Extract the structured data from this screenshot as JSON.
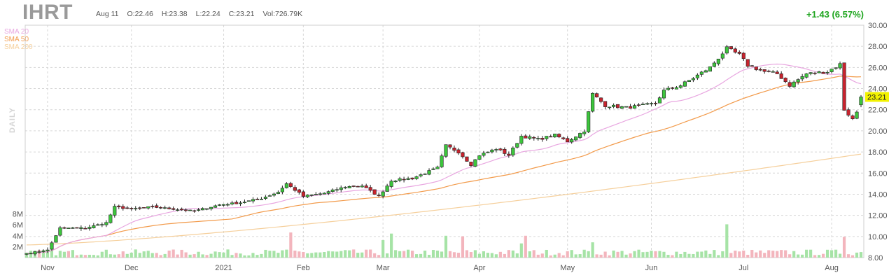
{
  "header": {
    "ticker": "IHRT",
    "date": "Aug 11",
    "open": "O:22.46",
    "high": "H:23.38",
    "low": "L:22.24",
    "close": "C:23.21",
    "volume": "Vol:726.79K",
    "change": "+1.43 (6.57%)",
    "timeframe": "DAILY"
  },
  "legend": [
    {
      "label": "SMA 20",
      "color": "#e8a6e0"
    },
    {
      "label": "SMA 50",
      "color": "#f29a4a"
    },
    {
      "label": "SMA 200",
      "color": "#f5cf9b"
    }
  ],
  "colors": {
    "up": "#3cc63c",
    "down": "#c8232e",
    "vol_up": "#a6e3a6",
    "vol_down": "#f3b5bd",
    "price_label_bg": "#f2f200"
  },
  "chart_data": {
    "type": "candlestick",
    "ylim": [
      8,
      30
    ],
    "y_ticks": [
      "8.00",
      "10.00",
      "12.00",
      "14.00",
      "16.00",
      "18.00",
      "20.00",
      "22.00",
      "24.00",
      "26.00",
      "28.00",
      "30.00"
    ],
    "volume_ticks": [
      "2M",
      "4M",
      "6M",
      "8M"
    ],
    "x_labels": [
      {
        "label": "Nov",
        "date": "2020-11-02"
      },
      {
        "label": "Dec",
        "date": "2020-12-01"
      },
      {
        "label": "2021",
        "date": "2021-01-04"
      },
      {
        "label": "Feb",
        "date": "2021-02-01"
      },
      {
        "label": "Mar",
        "date": "2021-03-01"
      },
      {
        "label": "Apr",
        "date": "2021-04-01"
      },
      {
        "label": "May",
        "date": "2021-05-03"
      },
      {
        "label": "Jun",
        "date": "2021-06-01"
      },
      {
        "label": "Jul",
        "date": "2021-07-01"
      },
      {
        "label": "Aug",
        "date": "2021-08-02"
      }
    ],
    "last_price": "23.21",
    "close_anchors": [
      [
        "2020-10-26",
        8.4
      ],
      [
        "2020-11-02",
        8.7
      ],
      [
        "2020-11-05",
        10.8
      ],
      [
        "2020-11-13",
        10.8
      ],
      [
        "2020-11-20",
        11.3
      ],
      [
        "2020-11-24",
        12.8
      ],
      [
        "2020-12-01",
        12.6
      ],
      [
        "2020-12-08",
        12.8
      ],
      [
        "2020-12-15",
        12.6
      ],
      [
        "2020-12-22",
        12.4
      ],
      [
        "2020-12-31",
        13.0
      ],
      [
        "2021-01-08",
        13.2
      ],
      [
        "2021-01-15",
        13.6
      ],
      [
        "2021-01-22",
        14.2
      ],
      [
        "2021-01-26",
        15.0
      ],
      [
        "2021-02-01",
        13.8
      ],
      [
        "2021-02-08",
        14.1
      ],
      [
        "2021-02-16",
        14.7
      ],
      [
        "2021-02-22",
        14.8
      ],
      [
        "2021-02-26",
        13.8
      ],
      [
        "2021-03-03",
        15.3
      ],
      [
        "2021-03-10",
        15.5
      ],
      [
        "2021-03-15",
        16.0
      ],
      [
        "2021-03-18",
        16.5
      ],
      [
        "2021-03-22",
        18.6
      ],
      [
        "2021-03-25",
        18.0
      ],
      [
        "2021-03-30",
        16.8
      ],
      [
        "2021-04-01",
        17.7
      ],
      [
        "2021-04-08",
        18.3
      ],
      [
        "2021-04-13",
        17.7
      ],
      [
        "2021-04-16",
        19.5
      ],
      [
        "2021-04-22",
        19.2
      ],
      [
        "2021-04-28",
        19.6
      ],
      [
        "2021-05-03",
        19.0
      ],
      [
        "2021-05-07",
        20.0
      ],
      [
        "2021-05-11",
        23.5
      ],
      [
        "2021-05-14",
        22.4
      ],
      [
        "2021-05-21",
        22.2
      ],
      [
        "2021-05-27",
        22.4
      ],
      [
        "2021-06-02",
        22.6
      ],
      [
        "2021-06-04",
        23.8
      ],
      [
        "2021-06-10",
        24.3
      ],
      [
        "2021-06-15",
        25.0
      ],
      [
        "2021-06-21",
        26.0
      ],
      [
        "2021-06-25",
        27.8
      ],
      [
        "2021-06-30",
        27.2
      ],
      [
        "2021-07-02",
        26.2
      ],
      [
        "2021-07-09",
        25.6
      ],
      [
        "2021-07-14",
        25.4
      ],
      [
        "2021-07-19",
        24.3
      ],
      [
        "2021-07-23",
        25.4
      ],
      [
        "2021-07-30",
        25.6
      ],
      [
        "2021-08-04",
        26.3
      ],
      [
        "2021-08-05",
        22.0
      ],
      [
        "2021-08-09",
        21.1
      ],
      [
        "2021-08-10",
        21.8
      ],
      [
        "2021-08-11",
        23.21
      ]
    ],
    "last_candle": {
      "date": "2021-08-11",
      "open": 22.46,
      "high": 23.38,
      "low": 22.24,
      "close": 23.21
    },
    "volume_spikes": [
      [
        "2021-01-27",
        4.6
      ],
      [
        "2021-03-01",
        3.2
      ],
      [
        "2021-03-03",
        4.4
      ],
      [
        "2021-03-22",
        4.0
      ],
      [
        "2021-03-26",
        3.9
      ],
      [
        "2021-04-16",
        2.6
      ],
      [
        "2021-04-19",
        4.0
      ],
      [
        "2021-05-11",
        2.8
      ],
      [
        "2021-06-25",
        6.1
      ],
      [
        "2021-08-05",
        3.8
      ]
    ]
  }
}
